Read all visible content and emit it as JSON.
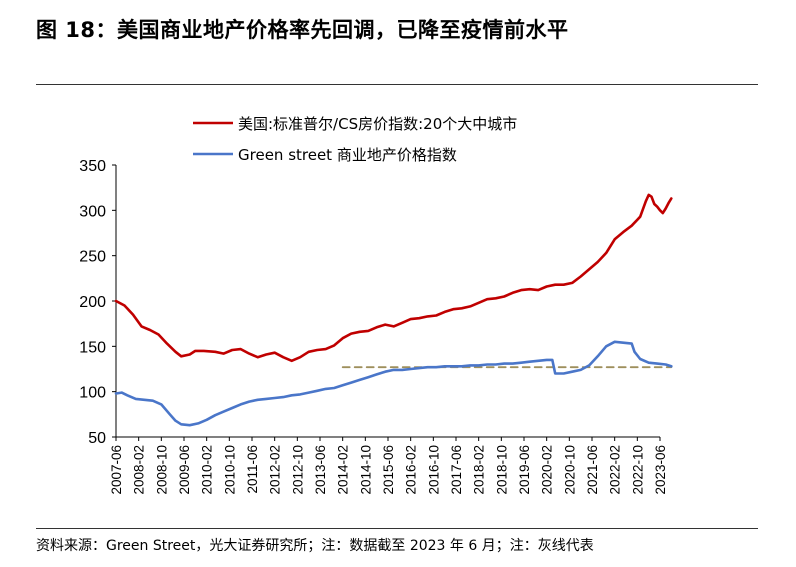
{
  "header": {
    "title": "图 18：美国商业地产价格率先回调，已降至疫情前水平"
  },
  "footer": {
    "source": "资料来源：Green Street，光大证券研究所；注：数据截至 2023 年 6 月；注：灰线代表"
  },
  "chart_data": {
    "type": "line",
    "title": "",
    "xlabel": "",
    "ylabel": "",
    "ylim": [
      50,
      350
    ],
    "yticks": [
      "50",
      "100",
      "150",
      "200",
      "250",
      "300",
      "350"
    ],
    "xlim": [
      "2007-06",
      "2023-06"
    ],
    "xticks": [
      "2007-06",
      "2008-02",
      "2008-10",
      "2009-06",
      "2010-02",
      "2010-10",
      "2011-06",
      "2012-02",
      "2012-10",
      "2013-06",
      "2014-02",
      "2014-10",
      "2015-06",
      "2016-02",
      "2016-10",
      "2017-06",
      "2018-02",
      "2018-10",
      "2019-06",
      "2020-02",
      "2020-10",
      "2021-06",
      "2022-02",
      "2022-10",
      "2023-06"
    ],
    "grid": false,
    "legend_position": "top",
    "series": [
      {
        "name": "美国:标准普尔/CS房价指数:20个大中城市",
        "color": "#c00000",
        "points": [
          [
            "2007-06",
            200
          ],
          [
            "2007-09",
            195
          ],
          [
            "2007-12",
            185
          ],
          [
            "2008-03",
            172
          ],
          [
            "2008-06",
            168
          ],
          [
            "2008-09",
            163
          ],
          [
            "2008-12",
            153
          ],
          [
            "2009-03",
            144
          ],
          [
            "2009-05",
            139
          ],
          [
            "2009-08",
            141
          ],
          [
            "2009-10",
            145
          ],
          [
            "2010-01",
            145
          ],
          [
            "2010-05",
            144
          ],
          [
            "2010-08",
            142
          ],
          [
            "2010-11",
            146
          ],
          [
            "2011-02",
            147
          ],
          [
            "2011-05",
            142
          ],
          [
            "2011-08",
            138
          ],
          [
            "2011-11",
            141
          ],
          [
            "2012-02",
            143
          ],
          [
            "2012-05",
            138
          ],
          [
            "2012-08",
            134
          ],
          [
            "2012-11",
            138
          ],
          [
            "2013-02",
            144
          ],
          [
            "2013-05",
            146
          ],
          [
            "2013-08",
            147
          ],
          [
            "2013-11",
            151
          ],
          [
            "2014-02",
            159
          ],
          [
            "2014-05",
            164
          ],
          [
            "2014-08",
            166
          ],
          [
            "2014-11",
            167
          ],
          [
            "2015-02",
            171
          ],
          [
            "2015-05",
            174
          ],
          [
            "2015-08",
            172
          ],
          [
            "2015-11",
            176
          ],
          [
            "2016-02",
            180
          ],
          [
            "2016-05",
            181
          ],
          [
            "2016-08",
            183
          ],
          [
            "2016-11",
            184
          ],
          [
            "2017-02",
            188
          ],
          [
            "2017-05",
            191
          ],
          [
            "2017-08",
            192
          ],
          [
            "2017-11",
            194
          ],
          [
            "2018-02",
            198
          ],
          [
            "2018-05",
            202
          ],
          [
            "2018-08",
            203
          ],
          [
            "2018-11",
            205
          ],
          [
            "2019-02",
            209
          ],
          [
            "2019-05",
            212
          ],
          [
            "2019-08",
            213
          ],
          [
            "2019-11",
            212
          ],
          [
            "2020-02",
            216
          ],
          [
            "2020-05",
            218
          ],
          [
            "2020-08",
            218
          ],
          [
            "2020-11",
            220
          ],
          [
            "2021-02",
            227
          ],
          [
            "2021-05",
            235
          ],
          [
            "2021-08",
            243
          ],
          [
            "2021-11",
            253
          ],
          [
            "2022-02",
            268
          ],
          [
            "2022-05",
            276
          ],
          [
            "2022-08",
            283
          ],
          [
            "2022-11",
            293
          ],
          [
            "2023-01",
            310
          ],
          [
            "2023-02",
            317
          ],
          [
            "2023-03",
            315
          ],
          [
            "2023-04",
            307
          ],
          [
            "2023-05",
            304
          ],
          [
            "2023-06",
            300
          ],
          [
            "2023-07",
            297
          ],
          [
            "2023-08",
            302
          ],
          [
            "2023-09",
            308
          ],
          [
            "2023-10",
            313
          ]
        ]
      },
      {
        "name": "Green street 商业地产价格指数",
        "color": "#4a76c9",
        "points": [
          [
            "2007-06",
            98
          ],
          [
            "2007-08",
            99
          ],
          [
            "2007-10",
            96
          ],
          [
            "2008-01",
            92
          ],
          [
            "2008-04",
            91
          ],
          [
            "2008-07",
            90
          ],
          [
            "2008-10",
            86
          ],
          [
            "2009-01",
            75
          ],
          [
            "2009-03",
            68
          ],
          [
            "2009-05",
            64
          ],
          [
            "2009-08",
            63
          ],
          [
            "2009-11",
            65
          ],
          [
            "2010-02",
            69
          ],
          [
            "2010-05",
            74
          ],
          [
            "2010-08",
            78
          ],
          [
            "2010-11",
            82
          ],
          [
            "2011-02",
            86
          ],
          [
            "2011-05",
            89
          ],
          [
            "2011-08",
            91
          ],
          [
            "2011-11",
            92
          ],
          [
            "2012-02",
            93
          ],
          [
            "2012-05",
            94
          ],
          [
            "2012-08",
            96
          ],
          [
            "2012-11",
            97
          ],
          [
            "2013-02",
            99
          ],
          [
            "2013-05",
            101
          ],
          [
            "2013-08",
            103
          ],
          [
            "2013-11",
            104
          ],
          [
            "2014-02",
            107
          ],
          [
            "2014-05",
            110
          ],
          [
            "2014-08",
            113
          ],
          [
            "2014-11",
            116
          ],
          [
            "2015-02",
            119
          ],
          [
            "2015-05",
            122
          ],
          [
            "2015-08",
            124
          ],
          [
            "2015-11",
            124
          ],
          [
            "2016-02",
            125
          ],
          [
            "2016-05",
            126
          ],
          [
            "2016-08",
            127
          ],
          [
            "2016-11",
            127
          ],
          [
            "2017-02",
            128
          ],
          [
            "2017-05",
            128
          ],
          [
            "2017-08",
            128
          ],
          [
            "2017-11",
            129
          ],
          [
            "2018-02",
            129
          ],
          [
            "2018-05",
            130
          ],
          [
            "2018-08",
            130
          ],
          [
            "2018-11",
            131
          ],
          [
            "2019-02",
            131
          ],
          [
            "2019-05",
            132
          ],
          [
            "2019-08",
            133
          ],
          [
            "2019-11",
            134
          ],
          [
            "2020-02",
            135
          ],
          [
            "2020-04",
            135
          ],
          [
            "2020-05",
            120
          ],
          [
            "2020-08",
            120
          ],
          [
            "2020-11",
            122
          ],
          [
            "2021-02",
            124
          ],
          [
            "2021-05",
            129
          ],
          [
            "2021-08",
            139
          ],
          [
            "2021-11",
            150
          ],
          [
            "2022-02",
            155
          ],
          [
            "2022-05",
            154
          ],
          [
            "2022-08",
            153
          ],
          [
            "2022-09",
            144
          ],
          [
            "2022-11",
            136
          ],
          [
            "2023-02",
            132
          ],
          [
            "2023-05",
            131
          ],
          [
            "2023-08",
            130
          ],
          [
            "2023-10",
            128
          ]
        ]
      },
      {
        "name": "",
        "color": "#9e8f5c",
        "style": "dashed",
        "points": [
          [
            "2014-02",
            127
          ],
          [
            "2023-10",
            127
          ]
        ]
      }
    ]
  }
}
